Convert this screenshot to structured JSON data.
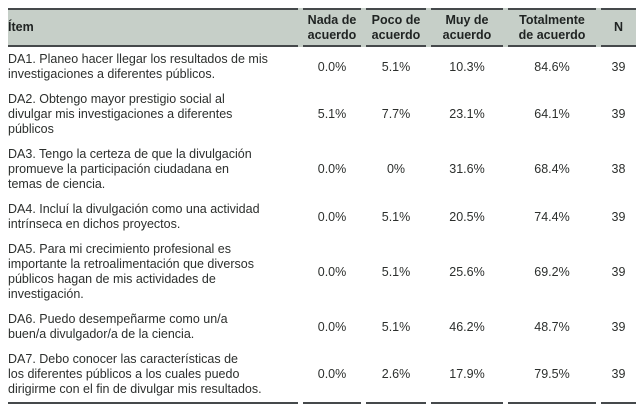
{
  "table": {
    "columns": {
      "item": "Ítem",
      "nada": "Nada de\nacuerdo",
      "poco": "Poco de\nacuerdo",
      "muy": "Muy de\nacuerdo",
      "total": "Totalmente\nde acuerdo",
      "n": "N"
    },
    "rows": [
      {
        "item": "DA1. Planeo hacer llegar los resultados de mis\ninvestigaciones a diferentes públicos.",
        "nada": "0.0%",
        "poco": "5.1%",
        "muy": "10.3%",
        "total": "84.6%",
        "n": "39"
      },
      {
        "item": "DA2. Obtengo mayor prestigio social al\ndivulgar mis investigaciones a diferentes\npúblicos",
        "nada": "5.1%",
        "poco": "7.7%",
        "muy": "23.1%",
        "total": "64.1%",
        "n": "39"
      },
      {
        "item": "DA3. Tengo la certeza de que la divulgación\npromueve la participación ciudadana en\ntemas de ciencia.",
        "nada": "0.0%",
        "poco": "0%",
        "muy": "31.6%",
        "total": "68.4%",
        "n": "38"
      },
      {
        "item": "DA4. Incluí la divulgación como una actividad\nintrínseca en dichos proyectos.",
        "nada": "0.0%",
        "poco": "5.1%",
        "muy": "20.5%",
        "total": "74.4%",
        "n": "39"
      },
      {
        "item": "DA5. Para mi crecimiento profesional es\nimportante la retroalimentación que diversos\npúblicos hagan de mis actividades de\ninvestigación.",
        "nada": "0.0%",
        "poco": "5.1%",
        "muy": "25.6%",
        "total": "69.2%",
        "n": "39"
      },
      {
        "item": "DA6. Puedo desempeñarme como un/a\nbuen/a divulgador/a de la ciencia.",
        "nada": "0.0%",
        "poco": "5.1%",
        "muy": "46.2%",
        "total": "48.7%",
        "n": "39"
      },
      {
        "item": "DA7. Debo conocer las características de\nlos diferentes públicos a los cuales puedo\ndirigirme con el fin de divulgar mis resultados.",
        "nada": "0.0%",
        "poco": "2.6%",
        "muy": "17.9%",
        "total": "79.5%",
        "n": "39"
      }
    ],
    "colors": {
      "header_bg": "#c6cfc8",
      "border": "#45494b",
      "text": "#2c2f2d"
    }
  }
}
